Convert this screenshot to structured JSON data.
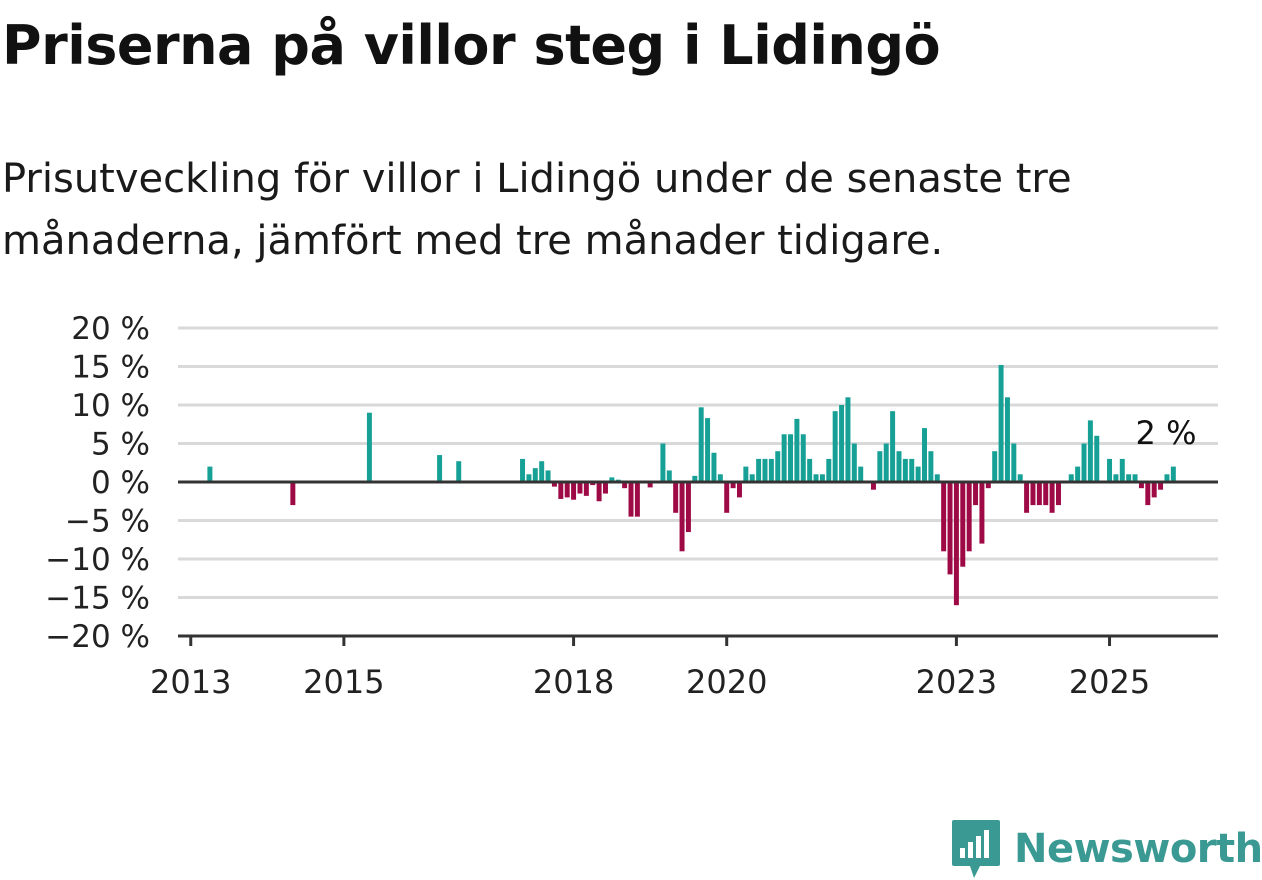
{
  "title": "Priserna på villor steg i Lidingö",
  "subtitle": "Prisutveckling för villor i Lidingö under de senaste tre månaderna, jämfört med tre månader tidigare.",
  "brand": {
    "name": "Newsworthy",
    "icon": "newsworthy-logo-icon",
    "color": "#3a9a93"
  },
  "colors": {
    "positive": "#17a095",
    "negative": "#9e0a45",
    "grid": "#d9d9d9",
    "axis": "#333333"
  },
  "chart_data": {
    "type": "bar",
    "title": "",
    "xlabel": "",
    "ylabel": "",
    "ylim": [
      -20,
      20
    ],
    "y_ticks": [
      20,
      15,
      10,
      5,
      0,
      -5,
      -10,
      -15,
      -20
    ],
    "y_tick_labels": [
      "20 %",
      "15 %",
      "10 %",
      "5 %",
      "0 %",
      "−5 %",
      "−10 %",
      "−15 %",
      "−20 %"
    ],
    "x_ticks": [
      {
        "label": "2013",
        "x": "2013-01"
      },
      {
        "label": "2015",
        "x": "2015-01"
      },
      {
        "label": "2018",
        "x": "2018-01"
      },
      {
        "label": "2020",
        "x": "2020-01"
      },
      {
        "label": "2023",
        "x": "2023-01"
      },
      {
        "label": "2025",
        "x": "2025-01"
      }
    ],
    "x_range": [
      "2012-11",
      "2026-06"
    ],
    "grid": true,
    "last_value_label": "2 %",
    "bars": [
      {
        "x": "2013-04",
        "value": 2
      },
      {
        "x": "2014-05",
        "value": -3
      },
      {
        "x": "2015-05",
        "value": 9
      },
      {
        "x": "2016-04",
        "value": 3.5
      },
      {
        "x": "2016-07",
        "value": 2.7
      },
      {
        "x": "2017-05",
        "value": 3
      },
      {
        "x": "2017-06",
        "value": 1
      },
      {
        "x": "2017-07",
        "value": 1.8
      },
      {
        "x": "2017-08",
        "value": 2.7
      },
      {
        "x": "2017-09",
        "value": 1.5
      },
      {
        "x": "2017-10",
        "value": -0.6
      },
      {
        "x": "2017-11",
        "value": -2.2
      },
      {
        "x": "2017-12",
        "value": -2
      },
      {
        "x": "2018-01",
        "value": -2.3
      },
      {
        "x": "2018-02",
        "value": -1.5
      },
      {
        "x": "2018-03",
        "value": -1.8
      },
      {
        "x": "2018-04",
        "value": -0.4
      },
      {
        "x": "2018-05",
        "value": -2.5
      },
      {
        "x": "2018-06",
        "value": -1.5
      },
      {
        "x": "2018-07",
        "value": 0.6
      },
      {
        "x": "2018-08",
        "value": 0.3
      },
      {
        "x": "2018-09",
        "value": -0.8
      },
      {
        "x": "2018-10",
        "value": -4.5
      },
      {
        "x": "2018-11",
        "value": -4.5
      },
      {
        "x": "2019-01",
        "value": -0.7
      },
      {
        "x": "2019-03",
        "value": 5
      },
      {
        "x": "2019-04",
        "value": 1.5
      },
      {
        "x": "2019-05",
        "value": -4
      },
      {
        "x": "2019-06",
        "value": -9
      },
      {
        "x": "2019-07",
        "value": -6.5
      },
      {
        "x": "2019-08",
        "value": 0.8
      },
      {
        "x": "2019-09",
        "value": 9.7
      },
      {
        "x": "2019-10",
        "value": 8.3
      },
      {
        "x": "2019-11",
        "value": 3.8
      },
      {
        "x": "2019-12",
        "value": 1
      },
      {
        "x": "2020-01",
        "value": -4
      },
      {
        "x": "2020-02",
        "value": -0.8
      },
      {
        "x": "2020-03",
        "value": -2
      },
      {
        "x": "2020-04",
        "value": 2
      },
      {
        "x": "2020-05",
        "value": 1
      },
      {
        "x": "2020-06",
        "value": 3
      },
      {
        "x": "2020-07",
        "value": 3
      },
      {
        "x": "2020-08",
        "value": 3
      },
      {
        "x": "2020-09",
        "value": 4
      },
      {
        "x": "2020-10",
        "value": 6.2
      },
      {
        "x": "2020-11",
        "value": 6.2
      },
      {
        "x": "2020-12",
        "value": 8.2
      },
      {
        "x": "2021-01",
        "value": 6.2
      },
      {
        "x": "2021-02",
        "value": 3
      },
      {
        "x": "2021-03",
        "value": 1
      },
      {
        "x": "2021-04",
        "value": 1
      },
      {
        "x": "2021-05",
        "value": 3
      },
      {
        "x": "2021-06",
        "value": 9.2
      },
      {
        "x": "2021-07",
        "value": 10
      },
      {
        "x": "2021-08",
        "value": 11
      },
      {
        "x": "2021-09",
        "value": 5
      },
      {
        "x": "2021-10",
        "value": 2
      },
      {
        "x": "2021-12",
        "value": -1
      },
      {
        "x": "2022-01",
        "value": 4
      },
      {
        "x": "2022-02",
        "value": 5
      },
      {
        "x": "2022-03",
        "value": 9.2
      },
      {
        "x": "2022-04",
        "value": 4
      },
      {
        "x": "2022-05",
        "value": 3
      },
      {
        "x": "2022-06",
        "value": 3
      },
      {
        "x": "2022-07",
        "value": 2
      },
      {
        "x": "2022-08",
        "value": 7
      },
      {
        "x": "2022-09",
        "value": 4
      },
      {
        "x": "2022-10",
        "value": 1
      },
      {
        "x": "2022-11",
        "value": -9
      },
      {
        "x": "2022-12",
        "value": -12
      },
      {
        "x": "2023-01",
        "value": -16
      },
      {
        "x": "2023-02",
        "value": -11
      },
      {
        "x": "2023-03",
        "value": -9
      },
      {
        "x": "2023-04",
        "value": -3
      },
      {
        "x": "2023-05",
        "value": -8
      },
      {
        "x": "2023-06",
        "value": -0.8
      },
      {
        "x": "2023-07",
        "value": 4
      },
      {
        "x": "2023-08",
        "value": 15.2
      },
      {
        "x": "2023-09",
        "value": 11
      },
      {
        "x": "2023-10",
        "value": 5
      },
      {
        "x": "2023-11",
        "value": 1
      },
      {
        "x": "2023-12",
        "value": -4
      },
      {
        "x": "2024-01",
        "value": -3
      },
      {
        "x": "2024-02",
        "value": -3
      },
      {
        "x": "2024-03",
        "value": -3
      },
      {
        "x": "2024-04",
        "value": -4
      },
      {
        "x": "2024-05",
        "value": -3
      },
      {
        "x": "2024-07",
        "value": 1
      },
      {
        "x": "2024-08",
        "value": 2
      },
      {
        "x": "2024-09",
        "value": 5
      },
      {
        "x": "2024-10",
        "value": 8
      },
      {
        "x": "2024-11",
        "value": 6
      },
      {
        "x": "2025-01",
        "value": 3
      },
      {
        "x": "2025-02",
        "value": 1
      },
      {
        "x": "2025-03",
        "value": 3
      },
      {
        "x": "2025-04",
        "value": 1
      },
      {
        "x": "2025-05",
        "value": 1
      },
      {
        "x": "2025-06",
        "value": -0.8
      },
      {
        "x": "2025-07",
        "value": -3
      },
      {
        "x": "2025-08",
        "value": -2
      },
      {
        "x": "2025-09",
        "value": -1
      },
      {
        "x": "2025-10",
        "value": 1
      },
      {
        "x": "2025-11",
        "value": 2
      }
    ]
  }
}
